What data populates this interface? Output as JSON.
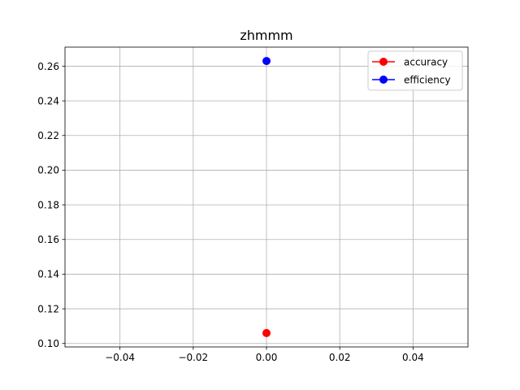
{
  "chart_data": {
    "type": "scatter",
    "title": "zhmmm",
    "xlabel": "",
    "ylabel": "",
    "xlim": [
      -0.055,
      0.055
    ],
    "ylim": [
      0.098,
      0.271
    ],
    "x_ticks": [
      -0.04,
      -0.02,
      0.0,
      0.02,
      0.04
    ],
    "x_tick_labels": [
      "−0.04",
      "−0.02",
      "0.00",
      "0.02",
      "0.04"
    ],
    "y_ticks": [
      0.1,
      0.12,
      0.14,
      0.16,
      0.18,
      0.2,
      0.22,
      0.24,
      0.26
    ],
    "y_tick_labels": [
      "0.10",
      "0.12",
      "0.14",
      "0.16",
      "0.18",
      "0.20",
      "0.22",
      "0.24",
      "0.26"
    ],
    "grid": true,
    "legend_position": "top-right",
    "series": [
      {
        "name": "accuracy",
        "color": "#ff0000",
        "marker": "circle",
        "x": [
          0.0
        ],
        "y": [
          0.106
        ]
      },
      {
        "name": "efficiency",
        "color": "#0000ff",
        "marker": "circle",
        "x": [
          0.0
        ],
        "y": [
          0.263
        ]
      }
    ]
  }
}
